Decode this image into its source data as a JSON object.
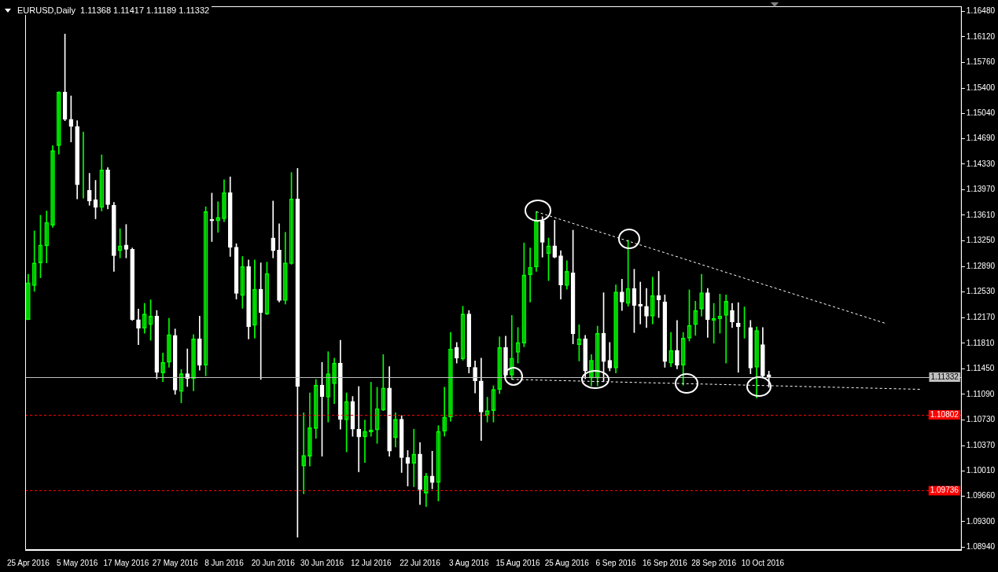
{
  "chart_data": {
    "type": "candlestick",
    "title": "EURUSD,Daily  1.11368 1.11417 1.11189 1.11332",
    "categories": [
      "25 Apr 2016",
      null,
      null,
      null,
      null,
      null,
      null,
      null,
      "5 May 2016",
      null,
      null,
      null,
      null,
      null,
      null,
      null,
      "17 May 2016",
      null,
      null,
      null,
      null,
      null,
      null,
      null,
      "27 May 2016",
      null,
      null,
      null,
      null,
      null,
      null,
      null,
      "8 Jun 2016",
      null,
      null,
      null,
      null,
      null,
      null,
      null,
      "20 Jun 2016",
      null,
      null,
      null,
      null,
      null,
      null,
      null,
      "30 Jun 2016",
      null,
      null,
      null,
      null,
      null,
      null,
      null,
      "12 Jul 2016",
      null,
      null,
      null,
      null,
      null,
      null,
      null,
      "22 Jul 2016",
      null,
      null,
      null,
      null,
      null,
      null,
      null,
      "3 Aug 2016",
      null,
      null,
      null,
      null,
      null,
      null,
      null,
      "15 Aug 2016",
      null,
      null,
      null,
      null,
      null,
      null,
      null,
      "25 Aug 2016",
      null,
      null,
      null,
      null,
      null,
      null,
      null,
      "6 Sep 2016",
      null,
      null,
      null,
      null,
      null,
      null,
      null,
      "16 Sep 2016",
      null,
      null,
      null,
      null,
      null,
      null,
      null,
      "28 Sep 2016",
      null,
      null,
      null,
      null,
      null,
      null,
      null,
      "10 Oct 2016",
      null,
      null,
      null,
      null,
      null,
      null,
      null,
      null,
      null,
      null,
      null,
      null,
      null,
      null,
      null,
      null,
      null,
      null,
      null,
      null,
      null,
      null,
      null,
      null,
      null,
      null,
      null,
      null,
      null,
      null,
      null,
      null
    ],
    "color": "#00ff00",
    "ohlc": [
      [
        1.1214,
        1.1278,
        1.1214,
        1.1266
      ],
      [
        1.1262,
        1.1339,
        1.1254,
        1.1294
      ],
      [
        1.1294,
        1.1361,
        1.1273,
        1.1319
      ],
      [
        1.1318,
        1.1367,
        1.1294,
        1.1351
      ],
      [
        1.1347,
        1.1459,
        1.1344,
        1.1452
      ],
      [
        1.1459,
        1.1535,
        1.1447,
        1.1534
      ],
      [
        1.1534,
        1.1616,
        1.1494,
        1.1496
      ],
      [
        1.1496,
        1.1529,
        1.1464,
        1.1486
      ],
      [
        1.1486,
        1.1494,
        1.1384,
        1.1404
      ],
      [
        1.1404,
        1.1478,
        1.1385,
        1.1404
      ],
      [
        1.1396,
        1.142,
        1.1375,
        1.1381
      ],
      [
        1.1383,
        1.141,
        1.1356,
        1.1372
      ],
      [
        1.1372,
        1.1446,
        1.1367,
        1.1425
      ],
      [
        1.1425,
        1.1428,
        1.137,
        1.1376
      ],
      [
        1.1375,
        1.1379,
        1.1282,
        1.1304
      ],
      [
        1.1311,
        1.1342,
        1.1301,
        1.1318
      ],
      [
        1.1319,
        1.1348,
        1.1301,
        1.1313
      ],
      [
        1.1313,
        1.1315,
        1.1213,
        1.1214
      ],
      [
        1.1214,
        1.1229,
        1.1179,
        1.1202
      ],
      [
        1.1202,
        1.1237,
        1.1195,
        1.1222
      ],
      [
        1.1207,
        1.1242,
        1.1185,
        1.1219
      ],
      [
        1.1219,
        1.1227,
        1.1131,
        1.114
      ],
      [
        1.1139,
        1.1167,
        1.1127,
        1.1154
      ],
      [
        1.1154,
        1.1216,
        1.1147,
        1.1193
      ],
      [
        1.1192,
        1.1201,
        1.1109,
        1.1115
      ],
      [
        1.1113,
        1.1144,
        1.1097,
        1.1138
      ],
      [
        1.1138,
        1.1173,
        1.112,
        1.1131
      ],
      [
        1.1131,
        1.1193,
        1.1114,
        1.1187
      ],
      [
        1.1187,
        1.1219,
        1.1143,
        1.115
      ],
      [
        1.115,
        1.1373,
        1.1135,
        1.1366
      ],
      [
        1.1355,
        1.1392,
        1.1324,
        1.1353
      ],
      [
        1.1353,
        1.138,
        1.1337,
        1.1358
      ],
      [
        1.1356,
        1.1411,
        1.1352,
        1.1393
      ],
      [
        1.1393,
        1.1415,
        1.1303,
        1.1316
      ],
      [
        1.1316,
        1.1321,
        1.1243,
        1.1251
      ],
      [
        1.1248,
        1.1303,
        1.123,
        1.1289
      ],
      [
        1.1289,
        1.1298,
        1.1187,
        1.1204
      ],
      [
        1.1206,
        1.1298,
        1.1188,
        1.1257
      ],
      [
        1.1257,
        1.1294,
        1.113,
        1.1224
      ],
      [
        1.1222,
        1.1295,
        1.1221,
        1.1279
      ],
      [
        1.1329,
        1.1381,
        1.1301,
        1.1311
      ],
      [
        1.1312,
        1.1349,
        1.1239,
        1.1241
      ],
      [
        1.1241,
        1.1337,
        1.1236,
        1.1294
      ],
      [
        1.1293,
        1.1421,
        1.1292,
        1.1384
      ],
      [
        1.1384,
        1.1427,
        1.0908,
        1.112
      ],
      [
        1.1008,
        1.1083,
        1.0969,
        1.1023
      ],
      [
        1.1022,
        1.1111,
        1.1008,
        1.1062
      ],
      [
        1.1061,
        1.113,
        1.1047,
        1.1122
      ],
      [
        1.1122,
        1.1154,
        1.1022,
        1.1106
      ],
      [
        1.1105,
        1.1169,
        1.107,
        1.1138
      ],
      [
        1.1124,
        1.116,
        1.1096,
        1.1153
      ],
      [
        1.1153,
        1.1185,
        1.106,
        1.1074
      ],
      [
        1.1073,
        1.1111,
        1.1028,
        1.1099
      ],
      [
        1.1099,
        1.1106,
        1.105,
        1.106
      ],
      [
        1.106,
        1.112,
        1.1,
        1.1049
      ],
      [
        1.1049,
        1.1073,
        1.1013,
        1.1057
      ],
      [
        1.1056,
        1.1126,
        1.105,
        1.1059
      ],
      [
        1.1059,
        1.1119,
        1.104,
        1.1089
      ],
      [
        1.1087,
        1.1165,
        1.1086,
        1.1118
      ],
      [
        1.1118,
        1.1148,
        1.1022,
        1.1029
      ],
      [
        1.1048,
        1.1083,
        1.1035,
        1.1074
      ],
      [
        1.1074,
        1.1079,
        1.0999,
        1.102
      ],
      [
        1.102,
        1.103,
        1.098,
        1.1012
      ],
      [
        1.1012,
        1.106,
        1.0979,
        1.1025
      ],
      [
        1.1025,
        1.1041,
        1.0954,
        1.0975
      ],
      [
        1.097,
        1.0998,
        1.0951,
        1.0994
      ],
      [
        1.0994,
        1.1029,
        1.0976,
        1.0985
      ],
      [
        1.0985,
        1.1065,
        1.0959,
        1.1057
      ],
      [
        1.1057,
        1.1119,
        1.105,
        1.1077
      ],
      [
        1.1077,
        1.1196,
        1.1071,
        1.1173
      ],
      [
        1.1175,
        1.1182,
        1.1153,
        1.116
      ],
      [
        1.1159,
        1.1233,
        1.1157,
        1.1222
      ],
      [
        1.1222,
        1.1227,
        1.1139,
        1.1148
      ],
      [
        1.1147,
        1.1156,
        1.1111,
        1.1128
      ],
      [
        1.1128,
        1.116,
        1.1044,
        1.1084
      ],
      [
        1.1079,
        1.1105,
        1.107,
        1.1086
      ],
      [
        1.1086,
        1.1121,
        1.107,
        1.1116
      ],
      [
        1.1116,
        1.119,
        1.111,
        1.1175
      ],
      [
        1.1175,
        1.1191,
        1.1134,
        1.1136
      ],
      [
        1.1136,
        1.122,
        1.113,
        1.116
      ],
      [
        1.1168,
        1.1203,
        1.1153,
        1.1182
      ],
      [
        1.1181,
        1.1322,
        1.1176,
        1.1277
      ],
      [
        1.1277,
        1.1315,
        1.1239,
        1.1288
      ],
      [
        1.1288,
        1.1366,
        1.1282,
        1.1353
      ],
      [
        1.1353,
        1.1359,
        1.1302,
        1.1323
      ],
      [
        1.1307,
        1.1329,
        1.1269,
        1.1318
      ],
      [
        1.1318,
        1.1354,
        1.1301,
        1.1302
      ],
      [
        1.1304,
        1.1311,
        1.1243,
        1.1263
      ],
      [
        1.1262,
        1.1297,
        1.1257,
        1.1282
      ],
      [
        1.128,
        1.134,
        1.118,
        1.1194
      ],
      [
        1.1179,
        1.1207,
        1.1156,
        1.1187
      ],
      [
        1.1187,
        1.1192,
        1.1131,
        1.1142
      ],
      [
        1.1132,
        1.1165,
        1.1121,
        1.1157
      ],
      [
        1.1132,
        1.1205,
        1.1121,
        1.1195
      ],
      [
        1.1195,
        1.1252,
        1.1127,
        1.1155
      ],
      [
        1.1157,
        1.1182,
        1.1142,
        1.1146
      ],
      [
        1.1146,
        1.1263,
        1.1139,
        1.1253
      ],
      [
        1.1253,
        1.1271,
        1.1227,
        1.1239
      ],
      [
        1.1237,
        1.1326,
        1.1233,
        1.1258
      ],
      [
        1.1258,
        1.1285,
        1.1196,
        1.1234
      ],
      [
        1.1236,
        1.1267,
        1.1208,
        1.1233
      ],
      [
        1.1233,
        1.1258,
        1.1203,
        1.1219
      ],
      [
        1.1219,
        1.1274,
        1.1208,
        1.1248
      ],
      [
        1.1248,
        1.1282,
        1.1217,
        1.1242
      ],
      [
        1.1239,
        1.1249,
        1.1147,
        1.1155
      ],
      [
        1.1153,
        1.1196,
        1.1148,
        1.1171
      ],
      [
        1.1171,
        1.1213,
        1.1145,
        1.115
      ],
      [
        1.115,
        1.1196,
        1.1122,
        1.1188
      ],
      [
        1.1188,
        1.1256,
        1.1184,
        1.1206
      ],
      [
        1.1207,
        1.124,
        1.1192,
        1.1227
      ],
      [
        1.1229,
        1.1278,
        1.1219,
        1.1252
      ],
      [
        1.1252,
        1.1258,
        1.1189,
        1.1214
      ],
      [
        1.1213,
        1.1237,
        1.1181,
        1.1216
      ],
      [
        1.1215,
        1.125,
        1.1195,
        1.1219
      ],
      [
        1.122,
        1.1249,
        1.1153,
        1.124
      ],
      [
        1.1227,
        1.1237,
        1.1203,
        1.1211
      ],
      [
        1.1209,
        1.1238,
        1.114,
        1.1204
      ],
      [
        1.1203,
        1.1232,
        1.1188,
        1.1203
      ],
      [
        1.1203,
        1.1213,
        1.1138,
        1.1146
      ],
      [
        1.1147,
        1.1204,
        1.1104,
        1.1199
      ],
      [
        1.1179,
        1.1203,
        1.1133,
        1.1135
      ],
      [
        1.11368,
        1.11417,
        1.11189,
        1.11332
      ],
      null,
      null,
      null,
      null,
      null,
      null,
      null,
      null,
      null,
      null,
      null,
      null,
      null,
      null,
      null,
      null,
      null,
      null,
      null,
      null,
      null,
      null,
      null,
      null,
      null,
      null,
      null,
      null,
      null,
      null,
      null
    ],
    "colors": [
      "#00ff00",
      "#00ff00",
      "#00ff00",
      "#00ff00",
      "#00ff00",
      "#00ff00",
      "#ffffff",
      "#ffffff",
      "#ffffff",
      "#00ff00",
      "#ffffff",
      "#ffffff",
      "#00ff00",
      "#ffffff",
      "#ffffff",
      "#00ff00",
      "#ffffff",
      "#ffffff",
      "#ffffff",
      "#00ff00",
      "#00ff00",
      "#ffffff",
      "#00ff00",
      "#00ff00",
      "#ffffff",
      "#00ff00",
      "#ffffff",
      "#00ff00",
      "#ffffff",
      "#00ff00",
      "#ffffff",
      "#00ff00",
      "#00ff00",
      "#ffffff",
      "#ffffff",
      "#00ff00",
      "#ffffff",
      "#00ff00",
      "#ffffff",
      "#00ff00",
      "#ffffff",
      "#ffffff",
      "#00ff00",
      "#00ff00",
      "#ffffff",
      "#00ff00",
      "#00ff00",
      "#00ff00",
      "#ffffff",
      "#00ff00",
      "#00ff00",
      "#ffffff",
      "#00ff00",
      "#ffffff",
      "#ffffff",
      "#00ff00",
      "#00ff00",
      "#00ff00",
      "#00ff00",
      "#ffffff",
      "#00ff00",
      "#ffffff",
      "#ffffff",
      "#00ff00",
      "#ffffff",
      "#00ff00",
      "#ffffff",
      "#00ff00",
      "#00ff00",
      "#00ff00",
      "#ffffff",
      "#00ff00",
      "#ffffff",
      "#ffffff",
      "#ffffff",
      "#00ff00",
      "#00ff00",
      "#00ff00",
      "#ffffff",
      "#00ff00",
      "#00ff00",
      "#00ff00",
      "#00ff00",
      "#00ff00",
      "#ffffff",
      "#00ff00",
      "#ffffff",
      "#ffffff",
      "#00ff00",
      "#ffffff",
      "#00ff00",
      "#ffffff",
      "#00ff00",
      "#00ff00",
      "#ffffff",
      "#ffffff",
      "#00ff00",
      "#ffffff",
      "#00ff00",
      "#ffffff",
      "#ffffff",
      "#ffffff",
      "#00ff00",
      "#ffffff",
      "#ffffff",
      "#00ff00",
      "#ffffff",
      "#00ff00",
      "#00ff00",
      "#00ff00",
      "#00ff00",
      "#ffffff",
      "#00ff00",
      "#00ff00",
      "#00ff00",
      "#ffffff",
      "#ffffff",
      "#00ff00",
      "#ffffff",
      "#00ff00",
      "#ffffff",
      "#ffffff",
      null,
      null,
      null,
      null,
      null,
      null,
      null,
      null,
      null,
      null,
      null,
      null,
      null,
      null,
      null,
      null,
      null,
      null,
      null,
      null,
      null,
      null,
      null,
      null,
      null,
      null,
      null,
      null,
      null,
      null,
      null
    ],
    "series": [
      {
        "type": "line",
        "color": "#ffffff",
        "line_style": "dashed",
        "values": [
          null,
          null,
          null,
          null,
          null,
          null,
          null,
          null,
          null,
          null,
          null,
          null,
          null,
          null,
          null,
          null,
          null,
          null,
          null,
          null,
          null,
          null,
          null,
          null,
          null,
          null,
          null,
          null,
          null,
          null,
          null,
          null,
          null,
          null,
          null,
          null,
          null,
          null,
          null,
          null,
          null,
          null,
          null,
          null,
          null,
          null,
          null,
          null,
          null,
          null,
          null,
          null,
          null,
          null,
          null,
          null,
          null,
          null,
          null,
          null,
          null,
          null,
          null,
          null,
          null,
          null,
          null,
          null,
          null,
          null,
          null,
          null,
          null,
          null,
          null,
          null,
          null,
          null,
          null,
          null,
          null,
          null,
          null,
          1.1366,
          null,
          null,
          null,
          null,
          null,
          null,
          null,
          null,
          null,
          null,
          null,
          null,
          null,
          null,
          null,
          null,
          null,
          null,
          null,
          null,
          null,
          null,
          null,
          null,
          null,
          null,
          null,
          null,
          null,
          null,
          null,
          null,
          null,
          null,
          null,
          null,
          null,
          null,
          null,
          null,
          null,
          null,
          null,
          null,
          null,
          null,
          null,
          null,
          null,
          null,
          null,
          null,
          null,
          null,
          null,
          null,
          1.1209,
          null,
          null,
          null,
          null,
          null,
          null,
          null,
          null,
          null,
          null,
          null,
          null
        ]
      },
      {
        "type": "line",
        "color": "#ffffff",
        "line_style": "dashed",
        "values": [
          null,
          null,
          null,
          null,
          null,
          null,
          null,
          null,
          null,
          null,
          null,
          null,
          null,
          null,
          null,
          null,
          null,
          null,
          null,
          null,
          null,
          null,
          null,
          null,
          null,
          null,
          null,
          null,
          null,
          null,
          null,
          null,
          null,
          null,
          null,
          null,
          null,
          null,
          null,
          null,
          null,
          null,
          null,
          null,
          null,
          null,
          null,
          null,
          null,
          null,
          null,
          null,
          null,
          null,
          null,
          null,
          null,
          null,
          null,
          null,
          null,
          null,
          null,
          null,
          null,
          null,
          null,
          null,
          null,
          null,
          null,
          null,
          null,
          null,
          null,
          null,
          null,
          null,
          null,
          1.113,
          null,
          null,
          null,
          null,
          null,
          null,
          null,
          null,
          null,
          null,
          null,
          null,
          null,
          null,
          null,
          null,
          null,
          null,
          null,
          null,
          null,
          null,
          null,
          null,
          null,
          null,
          null,
          null,
          null,
          null,
          null,
          null,
          null,
          null,
          null,
          null,
          null,
          null,
          null,
          null,
          null,
          null,
          null,
          null,
          null,
          null,
          null,
          null,
          null,
          null,
          null,
          null,
          null,
          null,
          null,
          null,
          null,
          null,
          null,
          null,
          null,
          null,
          null,
          null,
          null,
          null,
          1.1116,
          null,
          null,
          null,
          null,
          null,
          null
        ]
      }
    ],
    "ylim": [
      1.089,
      1.1655
    ],
    "yticks": [
      {
        "value": 1.1648,
        "label": "1.16480"
      },
      {
        "value": 1.1612,
        "label": "1.16120"
      },
      {
        "value": 1.1576,
        "label": "1.15760"
      },
      {
        "value": 1.154,
        "label": "1.15400"
      },
      {
        "value": 1.1504,
        "label": "1.15040"
      },
      {
        "value": 1.1469,
        "label": "1.14690"
      },
      {
        "value": 1.1433,
        "label": "1.14330"
      },
      {
        "value": 1.1397,
        "label": "1.13970"
      },
      {
        "value": 1.1361,
        "label": "1.13610"
      },
      {
        "value": 1.1325,
        "label": "1.13250"
      },
      {
        "value": 1.1289,
        "label": "1.12890"
      },
      {
        "value": 1.1253,
        "label": "1.12530"
      },
      {
        "value": 1.1217,
        "label": "1.12170"
      },
      {
        "value": 1.1181,
        "label": "1.11810"
      },
      {
        "value": 1.1145,
        "label": "1.11450"
      },
      {
        "value": 1.1109,
        "label": "1.11090"
      },
      {
        "value": 1.1073,
        "label": "1.10730"
      },
      {
        "value": 1.1037,
        "label": "1.10370"
      },
      {
        "value": 1.1001,
        "label": "1.10010"
      },
      {
        "value": 1.0966,
        "label": "1.09660"
      },
      {
        "value": 1.093,
        "label": "1.09300"
      },
      {
        "value": 1.0894,
        "label": "1.08940"
      }
    ],
    "ref_lines": [
      {
        "axis": "y",
        "value": 1.11332,
        "label": "1.11332",
        "color": "#c0c0c0",
        "line_style": "solid"
      },
      {
        "axis": "y",
        "value": 1.10802,
        "label": "1.10802",
        "color": "#ff0000",
        "line_style": "dashed"
      },
      {
        "axis": "y",
        "value": 1.09736,
        "label": "1.09736",
        "color": "#ff0000",
        "line_style": "dashed"
      }
    ]
  }
}
